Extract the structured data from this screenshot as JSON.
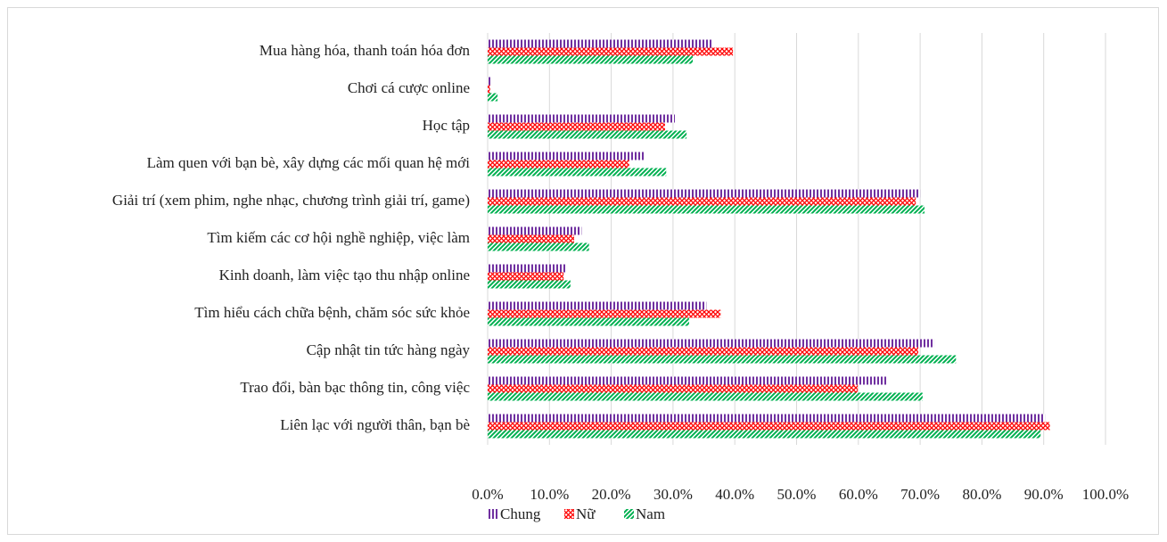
{
  "chart_data": {
    "type": "bar",
    "orientation": "horizontal",
    "categories": [
      "Mua hàng hóa, thanh toán hóa đơn",
      "Chơi cá cược online",
      "Học tập",
      "Làm quen với bạn bè, xây dựng các mối quan hệ mới",
      "Giải trí (xem phim, nghe nhạc, chương trình giải trí, game)",
      "Tìm kiếm các cơ hội nghề nghiệp, việc làm",
      "Kinh doanh, làm việc tạo thu nhập online",
      "Tìm hiểu cách chữa bệnh, chăm sóc sức khỏe",
      "Cập nhật tin tức hàng ngày",
      "Trao đổi, bàn bạc thông tin, công việc",
      "Liên lạc với người thân, bạn bè"
    ],
    "series": [
      {
        "name": "Chung",
        "color": "#7030a0",
        "values": [
          36.5,
          0.7,
          30.3,
          25.4,
          70,
          15.2,
          12.7,
          35.4,
          72.3,
          64.6,
          90.2
        ]
      },
      {
        "name": "Nữ",
        "color": "#ff0000",
        "values": [
          39.7,
          0.4,
          28.7,
          22.9,
          69.3,
          14,
          12.3,
          37.7,
          69.7,
          59.9,
          91
        ]
      },
      {
        "name": "Nam",
        "color": "#00b050",
        "values": [
          33.2,
          1.6,
          32.2,
          28.9,
          70.7,
          16.4,
          13.4,
          32.6,
          75.8,
          70.4,
          89.5
        ]
      }
    ],
    "xlim": [
      0,
      100
    ],
    "xticks": [
      {
        "value": 0,
        "label": "0.0%"
      },
      {
        "value": 10,
        "label": "10.0%"
      },
      {
        "value": 20,
        "label": "20.0%"
      },
      {
        "value": 30,
        "label": "30.0%"
      },
      {
        "value": 40,
        "label": "40.0%"
      },
      {
        "value": 50,
        "label": "50.0%"
      },
      {
        "value": 60,
        "label": "60.0%"
      },
      {
        "value": 70,
        "label": "70.0%"
      },
      {
        "value": 80,
        "label": "80.0%"
      },
      {
        "value": 90,
        "label": "90.0%"
      },
      {
        "value": 100,
        "label": "100.0%"
      }
    ],
    "grid": true,
    "legend": "bottom"
  }
}
